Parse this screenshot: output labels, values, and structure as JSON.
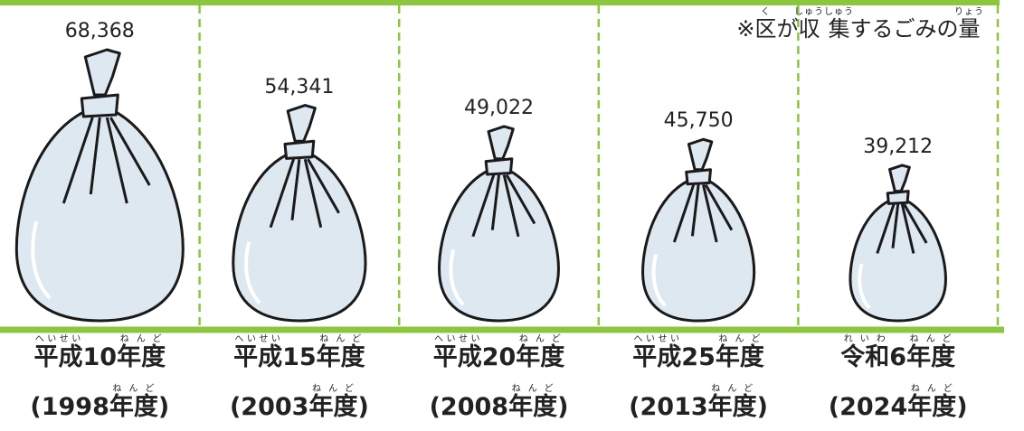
{
  "chart_data": {
    "type": "pictograph",
    "note": [
      {
        "text": "※"
      },
      {
        "text": "区",
        "ruby": "く"
      },
      {
        "text": "が"
      },
      {
        "text": "収集",
        "ruby": "しゅうしゅう"
      },
      {
        "text": "するごみの"
      },
      {
        "text": "量",
        "ruby": "りょう"
      }
    ],
    "categories": [
      [
        {
          "text": "平成",
          "ruby": "へいせい"
        },
        {
          "text": "10"
        },
        {
          "text": "年度",
          "ruby": "ねんど"
        }
      ],
      [
        {
          "text": "平成",
          "ruby": "へいせい"
        },
        {
          "text": "15"
        },
        {
          "text": "年度",
          "ruby": "ねんど"
        }
      ],
      [
        {
          "text": "平成",
          "ruby": "へいせい"
        },
        {
          "text": "20"
        },
        {
          "text": "年度",
          "ruby": "ねんど"
        }
      ],
      [
        {
          "text": "平成",
          "ruby": "へいせい"
        },
        {
          "text": "25"
        },
        {
          "text": "年度",
          "ruby": "ねんど"
        }
      ],
      [
        {
          "text": "令和",
          "ruby": "れいわ"
        },
        {
          "text": "6"
        },
        {
          "text": "年度",
          "ruby": "ねんど"
        }
      ]
    ],
    "years": [
      [
        {
          "text": "(1998"
        },
        {
          "text": "年度",
          "ruby": "ねんど"
        },
        {
          "text": ")"
        }
      ],
      [
        {
          "text": "(2003"
        },
        {
          "text": "年度",
          "ruby": "ねんど"
        },
        {
          "text": ")"
        }
      ],
      [
        {
          "text": "(2008"
        },
        {
          "text": "年度",
          "ruby": "ねんど"
        },
        {
          "text": ")"
        }
      ],
      [
        {
          "text": "(2013"
        },
        {
          "text": "年度",
          "ruby": "ねんど"
        },
        {
          "text": ")"
        }
      ],
      [
        {
          "text": "(2024"
        },
        {
          "text": "年度",
          "ruby": "ねんど"
        },
        {
          "text": ")"
        }
      ]
    ],
    "values": [
      68368,
      54341,
      49022,
      45750,
      39212
    ],
    "value_labels": [
      "68,368",
      "54,341",
      "49,022",
      "45,750",
      "39,212"
    ],
    "color": "#dde8f1"
  }
}
